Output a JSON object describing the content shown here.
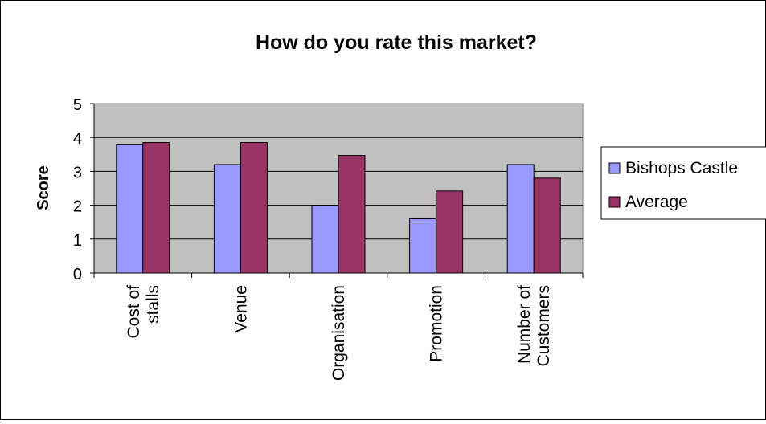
{
  "chart_data": {
    "type": "bar",
    "title": "How do you rate this market?",
    "xlabel": "",
    "ylabel": "Score",
    "ylim": [
      0,
      5
    ],
    "yticks": [
      "0",
      "1",
      "2",
      "3",
      "4",
      "5"
    ],
    "categories": [
      [
        "Cost of",
        "stalls"
      ],
      [
        "Venue"
      ],
      [
        "Organisation"
      ],
      [
        "Promotion"
      ],
      [
        "Number of",
        "Customers"
      ]
    ],
    "series": [
      {
        "name": "Bishops Castle",
        "values": [
          3.8,
          3.2,
          2.0,
          1.6,
          3.2
        ],
        "color": "#9999ff"
      },
      {
        "name": "Average",
        "values": [
          3.85,
          3.85,
          3.47,
          2.42,
          2.8
        ],
        "color": "#993366"
      }
    ],
    "grid": true,
    "plot_background": "#c0c0c0",
    "legend_position": "right"
  }
}
